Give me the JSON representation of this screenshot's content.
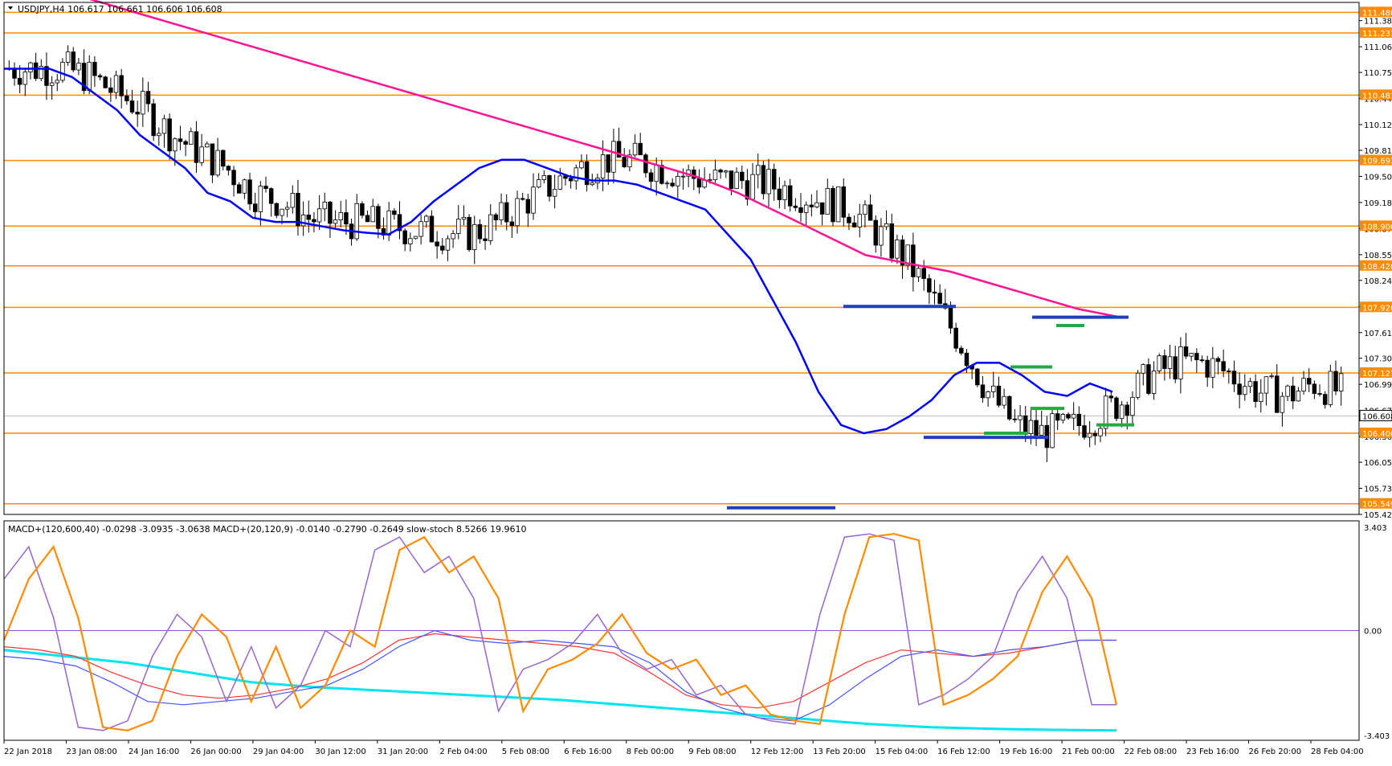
{
  "window": {
    "header": "USDJPY,H4  106.617 106.661 106.606 106.608",
    "indicator_header": "MACD+(120,600,40) -0.0298 -3.0935 -3.0638  MACD+(20,120,9) -0.0140 -0.2790 -0.2649  slow-stoch 8.5266 19.9610"
  },
  "colors": {
    "level_line": "#ff8c00",
    "level_box": "#ff8c00",
    "ema_fast": "#0000ff",
    "ema_slow": "#ff1493",
    "support_marks": "#1f3fbf",
    "green_marks": "#22aa44",
    "stoch_k": "#ff8c00",
    "stoch_d": "#9966cc",
    "macd_blue": "#4455ff",
    "macd_red": "#ff3333",
    "macd_cyan": "#00e5ee",
    "zero_line": "#9955dd"
  },
  "chart_data": [
    {
      "type": "candlestick",
      "symbol": "USDJPY",
      "timeframe": "H4",
      "ylim": [
        105.42,
        111.6
      ],
      "price_scale_ticks": [
        "111.380",
        "111.065",
        "110.755",
        "110.440",
        "110.125",
        "109.815",
        "109.500",
        "109.185",
        "108.870",
        "108.555",
        "108.245",
        "107.930",
        "107.615",
        "107.305",
        "106.990",
        "106.675",
        "106.360",
        "106.050",
        "105.735",
        "105.420"
      ],
      "horizontal_levels": [
        "111.480",
        "111.231",
        "110.481",
        "109.693",
        "108.900",
        "108.420",
        "107.920",
        "107.127",
        "106.400",
        "105.549"
      ],
      "current_price": "106.608",
      "time_labels": [
        "22 Jan 2018",
        "23 Jan 08:00",
        "24 Jan 16:00",
        "26 Jan 00:00",
        "29 Jan 04:00",
        "30 Jan 12:00",
        "31 Jan 20:00",
        "2 Feb 04:00",
        "5 Feb 08:00",
        "6 Feb 16:00",
        "8 Feb 00:00",
        "9 Feb 08:00",
        "12 Feb 12:00",
        "13 Feb 20:00",
        "15 Feb 04:00",
        "16 Feb 12:00",
        "19 Feb 16:00",
        "21 Feb 00:00",
        "22 Feb 08:00",
        "23 Feb 16:00",
        "26 Feb 20:00",
        "28 Feb 04:00"
      ],
      "series": [
        {
          "name": "EMA fast",
          "values": [
            110.8,
            110.8,
            110.8,
            110.7,
            110.5,
            110.3,
            110.0,
            109.8,
            109.6,
            109.3,
            109.2,
            109.0,
            108.95,
            108.95,
            108.9,
            108.85,
            108.82,
            108.8,
            108.95,
            109.2,
            109.4,
            109.6,
            109.7,
            109.7,
            109.6,
            109.5,
            109.45,
            109.45,
            109.4,
            109.3,
            109.2,
            109.1,
            108.8,
            108.5,
            108.0,
            107.5,
            106.9,
            106.5,
            106.4,
            106.45,
            106.6,
            106.8,
            107.1,
            107.25,
            107.25,
            107.1,
            106.9,
            106.85,
            107.0,
            106.9
          ]
        },
        {
          "name": "EMA slow",
          "values": [
            111.9,
            111.75,
            111.6,
            111.45,
            111.3,
            111.15,
            111.0,
            110.85,
            110.7,
            110.55,
            110.4,
            110.25,
            110.1,
            109.95,
            109.8,
            109.65,
            109.5,
            109.3,
            109.05,
            108.8,
            108.55,
            108.45,
            108.35,
            108.2,
            108.05,
            107.9,
            107.8
          ]
        }
      ],
      "annotation_marks": {
        "blue_ranges": [
          [
            107.93,
            107.93
          ],
          [
            107.8,
            107.8
          ],
          [
            106.35,
            106.35
          ],
          [
            105.5,
            105.5
          ]
        ],
        "green_marks": [
          107.7,
          107.2,
          106.7,
          106.4,
          106.5
        ]
      }
    },
    {
      "type": "line",
      "title": "MACD+(120,600,40) -0.0298 -3.0935 -3.0638  MACD+(20,120,9) -0.0140 -0.2790 -0.2649  slow-stoch 8.5266 19.9610",
      "y_axis_labels": [
        "3.403",
        "0.00",
        "-3.403"
      ],
      "ylim": [
        -3.403,
        3.403
      ],
      "series": [
        {
          "name": "slow-stoch",
          "values": [
            -0.3,
            1.6,
            2.6,
            0.4,
            -3.0,
            -3.1,
            -2.8,
            -0.8,
            0.5,
            -0.2,
            -2.2,
            -0.5,
            -2.4,
            -1.7,
            0.0,
            -0.5,
            2.5,
            2.9,
            1.8,
            2.3,
            1.0,
            -2.5,
            -1.2,
            -0.9,
            -0.4,
            0.5,
            -0.7,
            -1.2,
            -0.9,
            -2.0,
            -1.7,
            -2.6,
            -2.8,
            -2.9,
            0.5,
            2.9,
            3.0,
            2.8,
            -2.3,
            -2.0,
            -1.5,
            -0.8,
            1.2,
            2.3,
            1.0,
            -2.3
          ]
        },
        {
          "name": "macd-fast",
          "values": [
            -0.8,
            -0.9,
            -1.1,
            -1.6,
            -2.2,
            -2.3,
            -2.2,
            -2.1,
            -1.9,
            -1.7,
            -1.2,
            -0.5,
            0.0,
            -0.3,
            -0.4,
            -0.3,
            -0.4,
            -0.5,
            -1.0,
            -1.9,
            -2.4,
            -2.7,
            -2.8,
            -2.3,
            -1.5,
            -0.8,
            -0.6,
            -0.8,
            -0.6,
            -0.5,
            -0.3,
            -0.3
          ]
        },
        {
          "name": "macd-fast-signal",
          "values": [
            -0.5,
            -0.6,
            -0.8,
            -1.3,
            -1.7,
            -2.0,
            -2.1,
            -2.0,
            -1.8,
            -1.5,
            -1.0,
            -0.3,
            -0.1,
            -0.2,
            -0.3,
            -0.4,
            -0.5,
            -0.7,
            -1.3,
            -2.0,
            -2.3,
            -2.4,
            -2.2,
            -1.6,
            -1.0,
            -0.6,
            -0.7,
            -0.8,
            -0.7,
            -0.5,
            -0.3,
            -0.3
          ]
        },
        {
          "name": "macd-slow",
          "values": [
            -0.6,
            -0.8,
            -1.0,
            -1.3,
            -1.6,
            -1.75,
            -1.85,
            -1.95,
            -2.05,
            -2.15,
            -2.3,
            -2.45,
            -2.6,
            -2.75,
            -2.9,
            -3.0,
            -3.05,
            -3.08,
            -3.1
          ]
        }
      ]
    }
  ]
}
